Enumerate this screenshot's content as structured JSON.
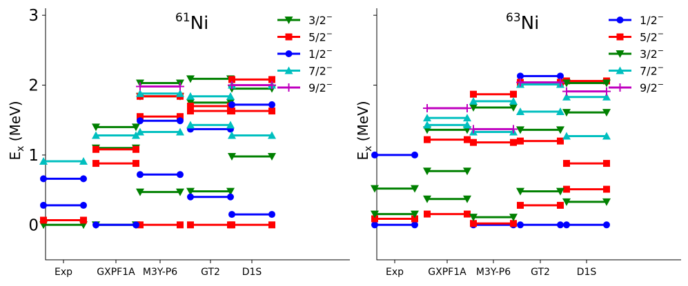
{
  "chart_data": [
    {
      "type": "level-scheme",
      "title": "⁶¹Ni",
      "title_mass": "61",
      "title_element": "Ni",
      "ylabel_main": "E",
      "ylabel_sub": "x",
      "ylabel_unit": " (MeV)",
      "ylim": [
        -0.5,
        3.1
      ],
      "yticks": [
        0,
        1,
        2,
        3
      ],
      "categories": [
        "Exp",
        "GXPF1A",
        "M3Y-P6",
        "GT2",
        "D1S"
      ],
      "legend_position": "top-right",
      "series": [
        {
          "name": "3/2⁻",
          "label_base": "3/2",
          "color": "#008000",
          "marker": "triangle-down",
          "levels": [
            [
              0,
              0.0
            ],
            [
              1,
              0.0
            ],
            [
              1,
              1.1
            ],
            [
              1,
              1.4
            ],
            [
              2,
              0.47
            ],
            [
              2,
              1.84
            ],
            [
              2,
              2.03
            ],
            [
              3,
              0.48
            ],
            [
              3,
              1.75
            ],
            [
              3,
              2.09
            ],
            [
              4,
              0.98
            ],
            [
              4,
              1.95
            ]
          ]
        },
        {
          "name": "5/2⁻",
          "label_base": "5/2",
          "color": "#ff0000",
          "marker": "square",
          "levels": [
            [
              0,
              0.067
            ],
            [
              1,
              0.88
            ],
            [
              1,
              1.08
            ],
            [
              2,
              0.0
            ],
            [
              2,
              1.55
            ],
            [
              2,
              1.84
            ],
            [
              3,
              0.0
            ],
            [
              3,
              1.63
            ],
            [
              3,
              1.7
            ],
            [
              4,
              0.0
            ],
            [
              4,
              1.63
            ],
            [
              4,
              2.08
            ]
          ]
        },
        {
          "name": "1/2⁻",
          "label_base": "1/2",
          "color": "#0000ff",
          "marker": "circle",
          "levels": [
            [
              0,
              0.28
            ],
            [
              0,
              0.66
            ],
            [
              1,
              0.0
            ],
            [
              2,
              0.72
            ],
            [
              2,
              1.49
            ],
            [
              3,
              0.4
            ],
            [
              3,
              1.37
            ],
            [
              4,
              0.15
            ],
            [
              4,
              1.72
            ]
          ]
        },
        {
          "name": "7/2⁻",
          "label_base": "7/2",
          "color": "#00bfbf",
          "marker": "triangle-up",
          "levels": [
            [
              0,
              0.91
            ],
            [
              1,
              1.28
            ],
            [
              2,
              1.33
            ],
            [
              2,
              1.88
            ],
            [
              3,
              1.43
            ],
            [
              3,
              1.84
            ],
            [
              4,
              1.28
            ],
            [
              4,
              2.0
            ]
          ]
        },
        {
          "name": "9/2⁻",
          "label_base": "9/2",
          "color": "#bf00bf",
          "marker": "plus",
          "levels": [
            [
              2,
              1.98
            ],
            [
              4,
              2.0
            ]
          ]
        }
      ]
    },
    {
      "type": "level-scheme",
      "title": "⁶³Ni",
      "title_mass": "63",
      "title_element": "Ni",
      "ylabel_main": "E",
      "ylabel_sub": "x",
      "ylabel_unit": " (MeV)",
      "ylim": [
        -0.5,
        3.1
      ],
      "yticks": [
        0,
        1,
        2,
        3
      ],
      "categories": [
        "Exp",
        "GXPF1A",
        "M3Y-P6",
        "GT2",
        "D1S"
      ],
      "legend_position": "top-right",
      "series": [
        {
          "name": "1/2⁻",
          "label_base": "1/2",
          "color": "#0000ff",
          "marker": "circle",
          "levels": [
            [
              0,
              0.0
            ],
            [
              0,
              1.0
            ],
            [
              2,
              0.0
            ],
            [
              3,
              0.0
            ],
            [
              3,
              2.13
            ],
            [
              4,
              0.0
            ]
          ]
        },
        {
          "name": "5/2⁻",
          "label_base": "5/2",
          "color": "#ff0000",
          "marker": "square",
          "levels": [
            [
              0,
              0.087
            ],
            [
              1,
              0.155
            ],
            [
              1,
              1.22
            ],
            [
              2,
              0.02
            ],
            [
              2,
              1.18
            ],
            [
              2,
              1.87
            ],
            [
              3,
              0.28
            ],
            [
              3,
              1.2
            ],
            [
              3,
              2.04
            ],
            [
              4,
              0.51
            ],
            [
              4,
              0.88
            ],
            [
              4,
              2.06
            ]
          ]
        },
        {
          "name": "3/2⁻",
          "label_base": "3/2",
          "color": "#008000",
          "marker": "triangle-down",
          "levels": [
            [
              0,
              0.155
            ],
            [
              0,
              0.52
            ],
            [
              1,
              0.37
            ],
            [
              1,
              0.77
            ],
            [
              1,
              1.36
            ],
            [
              2,
              0.11
            ],
            [
              2,
              1.68
            ],
            [
              3,
              0.48
            ],
            [
              3,
              1.36
            ],
            [
              4,
              0.33
            ],
            [
              4,
              1.61
            ],
            [
              4,
              2.03
            ]
          ]
        },
        {
          "name": "7/2⁻",
          "label_base": "7/2",
          "color": "#00bfbf",
          "marker": "triangle-up",
          "levels": [
            [
              1,
              1.43
            ],
            [
              1,
              1.53
            ],
            [
              2,
              1.33
            ],
            [
              2,
              1.77
            ],
            [
              3,
              1.62
            ],
            [
              3,
              2.01
            ],
            [
              4,
              1.27
            ],
            [
              4,
              1.83
            ]
          ]
        },
        {
          "name": "9/2⁻",
          "label_base": "9/2",
          "color": "#bf00bf",
          "marker": "plus",
          "levels": [
            [
              1,
              1.67
            ],
            [
              2,
              1.37
            ],
            [
              3,
              2.04
            ],
            [
              4,
              1.91
            ]
          ]
        }
      ]
    }
  ]
}
